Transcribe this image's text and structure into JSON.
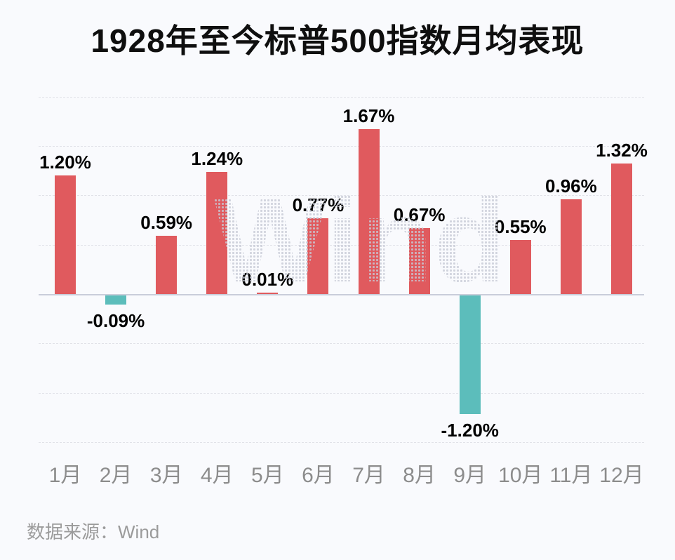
{
  "page": {
    "title": "1928年至今标普500指数月均表现",
    "source": "数据来源：Wind",
    "watermark": "Wind"
  },
  "colors": {
    "positive_bar": "#e05a5e",
    "negative_bar": "#5cbdbb",
    "axis_line": "#c9cdda",
    "gridline": "#e1e2e8",
    "background": "#f9fafd",
    "value_label_text": "#000000",
    "month_label_text": "#8c8c8c",
    "source_text": "#9b9b9b"
  },
  "chart_data": {
    "type": "bar",
    "title": "1928年至今标普500指数月均表现",
    "categories": [
      "1月",
      "2月",
      "3月",
      "4月",
      "5月",
      "6月",
      "7月",
      "8月",
      "9月",
      "10月",
      "11月",
      "12月"
    ],
    "values": [
      1.2,
      -0.09,
      0.59,
      1.24,
      0.01,
      0.77,
      1.67,
      0.67,
      -1.2,
      0.55,
      0.96,
      1.32
    ],
    "data_labels": [
      "1.20%",
      "-0.09%",
      "0.59%",
      "1.24%",
      "0.01%",
      "0.77%",
      "1.67%",
      "0.67%",
      "-1.20%",
      "0.55%",
      "0.96%",
      "1.32%"
    ],
    "xlabel": "",
    "ylabel": "",
    "ylim": [
      -1.75,
      2.27
    ],
    "gridline_values": [
      2.0,
      1.5,
      1.0,
      0.5,
      -0.5,
      -1.0,
      -1.5
    ],
    "grid": "horizontal-dashed",
    "legend": "none",
    "unit": "%"
  }
}
